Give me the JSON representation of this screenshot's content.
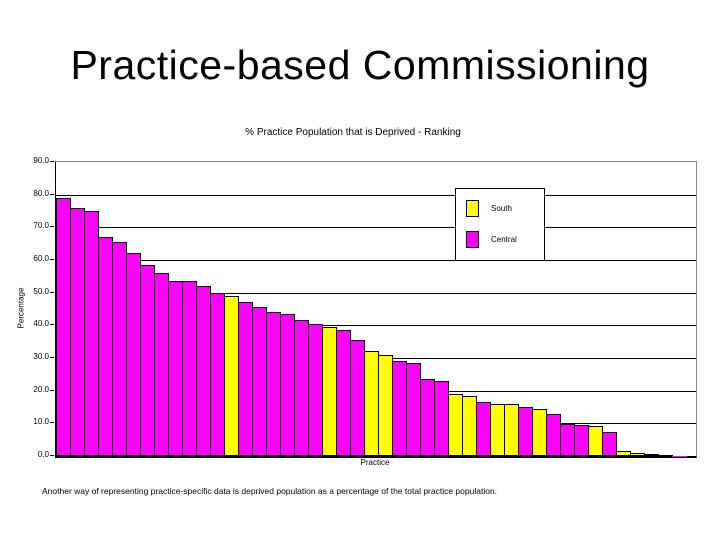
{
  "slide": {
    "title": "Practice-based Commissioning",
    "footer": "Another way of representing practice-specific data is deprived population as a percentage of the total practice population."
  },
  "chart_data": {
    "type": "bar",
    "title": "% Practice Population that is Deprived - Ranking",
    "xlabel": "Practice",
    "ylabel": "Percentage",
    "ylim": [
      0,
      90
    ],
    "ytick_step": 10,
    "ytick_labels": [
      "90.0",
      "80.0",
      "70.0",
      "60.0",
      "50.0",
      "40.0",
      "30.0",
      "20.0",
      "10.0",
      "0.0"
    ],
    "grid": true,
    "legend_position": "inside-upper-right",
    "legend": [
      {
        "name": "South",
        "color": "#FFFF00"
      },
      {
        "name": "Central",
        "color": "#FF00FF"
      }
    ],
    "series_colors": {
      "South": "#FFFF00",
      "Central": "#FF00FF"
    },
    "bars": [
      {
        "value": 79.0,
        "series": "Central"
      },
      {
        "value": 76.0,
        "series": "Central"
      },
      {
        "value": 75.0,
        "series": "Central"
      },
      {
        "value": 67.0,
        "series": "Central"
      },
      {
        "value": 65.5,
        "series": "Central"
      },
      {
        "value": 62.0,
        "series": "Central"
      },
      {
        "value": 58.5,
        "series": "Central"
      },
      {
        "value": 56.0,
        "series": "Central"
      },
      {
        "value": 53.5,
        "series": "Central"
      },
      {
        "value": 53.5,
        "series": "Central"
      },
      {
        "value": 52.0,
        "series": "Central"
      },
      {
        "value": 50.0,
        "series": "Central"
      },
      {
        "value": 49.0,
        "series": "South"
      },
      {
        "value": 47.0,
        "series": "Central"
      },
      {
        "value": 45.5,
        "series": "Central"
      },
      {
        "value": 44.0,
        "series": "Central"
      },
      {
        "value": 43.5,
        "series": "Central"
      },
      {
        "value": 41.5,
        "series": "Central"
      },
      {
        "value": 40.5,
        "series": "Central"
      },
      {
        "value": 39.5,
        "series": "South"
      },
      {
        "value": 38.5,
        "series": "Central"
      },
      {
        "value": 35.5,
        "series": "Central"
      },
      {
        "value": 32.0,
        "series": "South"
      },
      {
        "value": 31.0,
        "series": "South"
      },
      {
        "value": 29.0,
        "series": "Central"
      },
      {
        "value": 28.5,
        "series": "Central"
      },
      {
        "value": 23.5,
        "series": "Central"
      },
      {
        "value": 23.0,
        "series": "Central"
      },
      {
        "value": 19.0,
        "series": "South"
      },
      {
        "value": 18.5,
        "series": "South"
      },
      {
        "value": 16.5,
        "series": "Central"
      },
      {
        "value": 16.0,
        "series": "South"
      },
      {
        "value": 16.0,
        "series": "South"
      },
      {
        "value": 15.0,
        "series": "Central"
      },
      {
        "value": 14.5,
        "series": "South"
      },
      {
        "value": 13.0,
        "series": "Central"
      },
      {
        "value": 9.7,
        "series": "Central"
      },
      {
        "value": 9.4,
        "series": "Central"
      },
      {
        "value": 9.2,
        "series": "South"
      },
      {
        "value": 7.5,
        "series": "Central"
      },
      {
        "value": 1.5,
        "series": "South"
      },
      {
        "value": 1.0,
        "series": "South"
      },
      {
        "value": 0.5,
        "series": "Central"
      },
      {
        "value": 0.4,
        "series": "Central"
      },
      {
        "value": 0.1,
        "series": "Central"
      }
    ]
  }
}
